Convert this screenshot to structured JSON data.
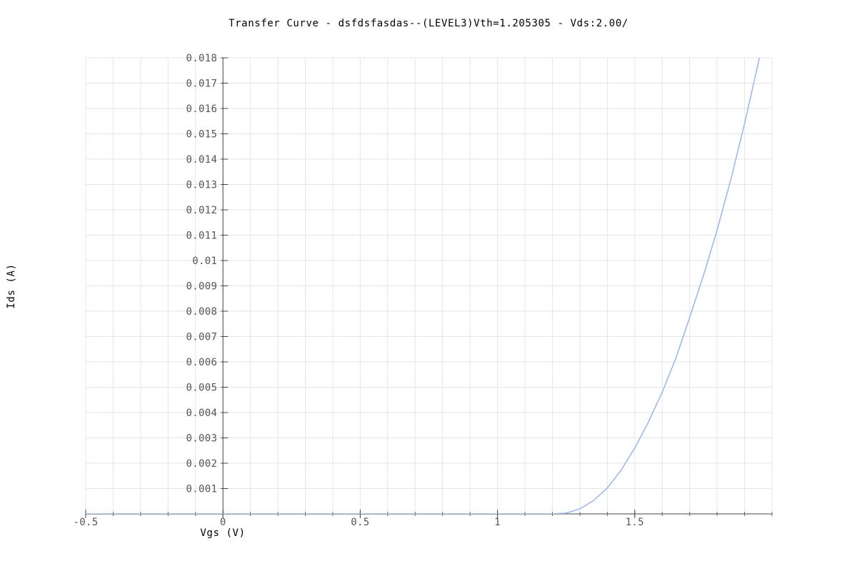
{
  "chart_data": {
    "type": "line",
    "title": "Transfer Curve - dsfdsfasdas--(LEVEL3)Vth=1.205305 - Vds:2.00/",
    "xlabel": "Vgs (V)",
    "ylabel": "Ids (A)",
    "xlim": [
      -0.5,
      2.0
    ],
    "ylim": [
      0,
      0.018
    ],
    "grid": true,
    "x_ticks": [
      -0.5,
      0,
      0.5,
      1,
      1.5
    ],
    "x_tick_labels": [
      "-0.5",
      "0",
      "0.5",
      "1",
      "1.5"
    ],
    "y_ticks": [
      0.001,
      0.002,
      0.003,
      0.004,
      0.005,
      0.006,
      0.007,
      0.008,
      0.009,
      0.01,
      0.011,
      0.012,
      0.013,
      0.014,
      0.015,
      0.016,
      0.017,
      0.018
    ],
    "y_tick_labels": [
      "0.001",
      "0.002",
      "0.003",
      "0.004",
      "0.005",
      "0.006",
      "0.007",
      "0.008",
      "0.009",
      "0.01",
      "0.011",
      "0.012",
      "0.013",
      "0.014",
      "0.015",
      "0.016",
      "0.017",
      "0.018"
    ],
    "series": [
      {
        "color": "#a0b8f0",
        "x": [
          -0.5,
          0.0,
          0.5,
          1.0,
          1.2,
          1.25,
          1.3,
          1.35,
          1.4,
          1.45,
          1.5,
          1.55,
          1.6,
          1.65,
          1.7,
          1.75,
          1.8,
          1.85,
          1.9,
          1.95,
          2.0
        ],
        "y": [
          0.0,
          0.0,
          0.0,
          0.0,
          0.0,
          3e-05,
          0.0002,
          0.00053,
          0.00102,
          0.00172,
          0.0026,
          0.00363,
          0.0048,
          0.00615,
          0.00775,
          0.0094,
          0.0112,
          0.0132,
          0.0154,
          0.0178,
          0.0202
        ]
      }
    ]
  }
}
